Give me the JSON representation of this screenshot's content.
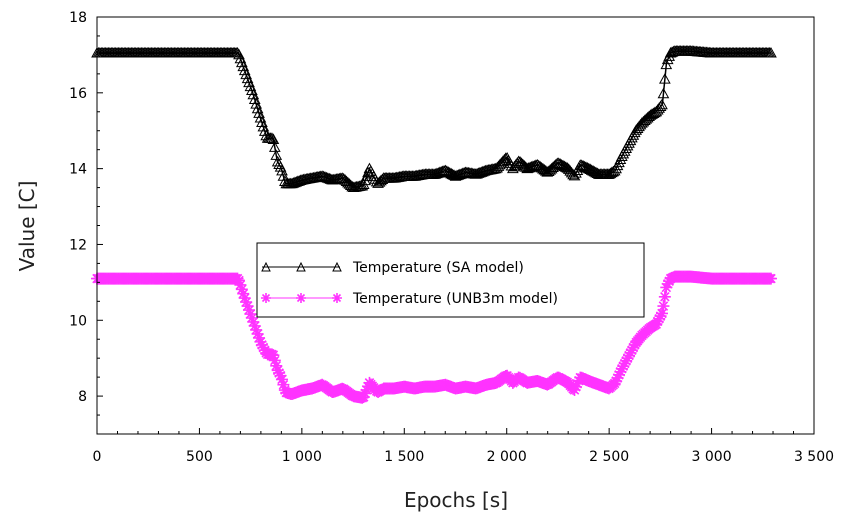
{
  "chart_data": {
    "type": "line",
    "title": "",
    "xlabel": "Epochs [s]",
    "ylabel": "Value [C]",
    "xlim": [
      0,
      3500
    ],
    "ylim": [
      7,
      18
    ],
    "x_ticks": [
      0,
      500,
      1000,
      1500,
      2000,
      2500,
      3000,
      3500
    ],
    "x_tick_labels": [
      "0",
      "500",
      "1 000",
      "1 500",
      "2 000",
      "2 500",
      "3 000",
      "3 500"
    ],
    "y_ticks": [
      8,
      10,
      12,
      14,
      16,
      18
    ],
    "y_tick_labels": [
      "8",
      "10",
      "12",
      "14",
      "16",
      "18"
    ],
    "grid": false,
    "legend_position": "center",
    "series": [
      {
        "name": "Temperature (SA model)",
        "color": "#000000",
        "marker": "triangle",
        "x": [
          0,
          100,
          200,
          300,
          400,
          500,
          600,
          690,
          720,
          760,
          800,
          830,
          860,
          880,
          900,
          920,
          950,
          1000,
          1050,
          1100,
          1150,
          1200,
          1250,
          1300,
          1330,
          1370,
          1400,
          1450,
          1500,
          1550,
          1600,
          1650,
          1700,
          1750,
          1800,
          1850,
          1900,
          1950,
          2000,
          2030,
          2060,
          2100,
          2150,
          2200,
          2250,
          2300,
          2330,
          2360,
          2400,
          2450,
          2500,
          2530,
          2560,
          2600,
          2630,
          2660,
          2700,
          2730,
          2760,
          2780,
          2800,
          2820,
          2850,
          2900,
          3000,
          3100,
          3200,
          3290
        ],
        "y": [
          17.05,
          17.05,
          17.05,
          17.05,
          17.05,
          17.05,
          17.05,
          17.05,
          16.6,
          16.0,
          15.3,
          14.8,
          14.8,
          14.2,
          14.0,
          13.6,
          13.6,
          13.7,
          13.75,
          13.8,
          13.7,
          13.75,
          13.5,
          13.55,
          14.0,
          13.6,
          13.75,
          13.75,
          13.8,
          13.8,
          13.85,
          13.85,
          13.95,
          13.8,
          13.9,
          13.85,
          13.95,
          14.0,
          14.3,
          14.0,
          14.2,
          14.0,
          14.1,
          13.9,
          14.15,
          14.0,
          13.8,
          14.1,
          14.0,
          13.85,
          13.85,
          13.95,
          14.3,
          14.7,
          15.0,
          15.2,
          15.4,
          15.5,
          15.7,
          16.8,
          17.05,
          17.1,
          17.1,
          17.1,
          17.05,
          17.05,
          17.05,
          17.05
        ]
      },
      {
        "name": "Temperature (UNB3m model)",
        "color": "#ff33ff",
        "marker": "asterisk",
        "x": [
          0,
          100,
          200,
          300,
          400,
          500,
          600,
          690,
          720,
          760,
          800,
          830,
          860,
          880,
          900,
          920,
          950,
          1000,
          1050,
          1100,
          1150,
          1200,
          1250,
          1300,
          1330,
          1370,
          1400,
          1450,
          1500,
          1550,
          1600,
          1650,
          1700,
          1750,
          1800,
          1850,
          1900,
          1950,
          2000,
          2030,
          2060,
          2100,
          2150,
          2200,
          2250,
          2300,
          2330,
          2360,
          2400,
          2450,
          2500,
          2530,
          2560,
          2600,
          2630,
          2660,
          2700,
          2730,
          2760,
          2780,
          2800,
          2820,
          2850,
          2900,
          3000,
          3100,
          3200,
          3290
        ],
        "y": [
          11.1,
          11.1,
          11.1,
          11.1,
          11.1,
          11.1,
          11.1,
          11.1,
          10.6,
          10.0,
          9.4,
          9.1,
          9.1,
          8.7,
          8.5,
          8.1,
          8.05,
          8.15,
          8.2,
          8.3,
          8.1,
          8.2,
          8.0,
          7.95,
          8.35,
          8.1,
          8.2,
          8.2,
          8.25,
          8.2,
          8.25,
          8.25,
          8.3,
          8.2,
          8.25,
          8.2,
          8.3,
          8.35,
          8.55,
          8.35,
          8.5,
          8.35,
          8.4,
          8.3,
          8.5,
          8.35,
          8.15,
          8.5,
          8.4,
          8.3,
          8.2,
          8.35,
          8.7,
          9.1,
          9.4,
          9.6,
          9.8,
          9.9,
          10.2,
          10.9,
          11.1,
          11.15,
          11.15,
          11.15,
          11.1,
          11.1,
          11.1,
          11.1
        ]
      }
    ]
  }
}
